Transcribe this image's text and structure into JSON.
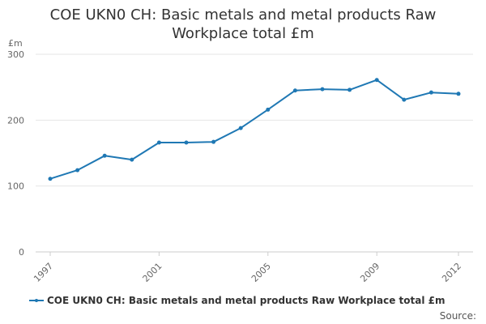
{
  "chart_data": {
    "type": "line",
    "title": "COE UKN0 CH: Basic metals and metal products Raw Workplace total £m",
    "ylabel": "£m",
    "xlabel": "",
    "x": [
      1997,
      1998,
      1999,
      2000,
      2001,
      2002,
      2003,
      2004,
      2005,
      2006,
      2007,
      2008,
      2009,
      2010,
      2011,
      2012
    ],
    "x_tick_labels": [
      "1997",
      "2001",
      "2005",
      "2009",
      "2012"
    ],
    "y_tick_labels": [
      "0",
      "100",
      "200",
      "300"
    ],
    "ylim": [
      0,
      300
    ],
    "grid": true,
    "legend_position": "bottom",
    "series": [
      {
        "name": "COE UKN0 CH: Basic metals and metal products Raw Workplace total £m",
        "values": [
          111,
          124,
          146,
          140,
          166,
          166,
          167,
          188,
          216,
          245,
          247,
          246,
          261,
          231,
          242,
          240
        ],
        "color": "#1f78b4"
      }
    ],
    "source_label": "Source:"
  }
}
